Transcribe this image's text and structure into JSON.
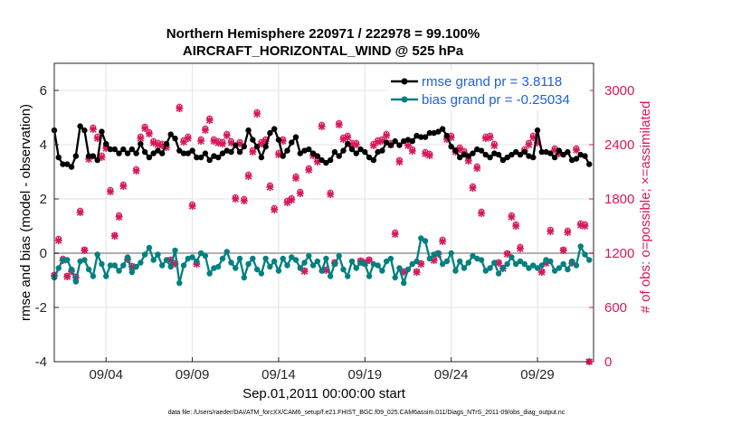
{
  "chart_data": {
    "type": "line",
    "title": "Northern Hemisphere 220971 / 222978 = 99.100%",
    "subtitle": "AIRCRAFT_HORIZONTAL_WIND @ 525 hPa",
    "xlabel": "Sep.01,2011 00:00:00 start",
    "ylabel_left": "rmse and bias (model - observation)",
    "ylabel_right": "# of obs: o=possible; ×=assimilated",
    "footnote": "data file: /Users/raeder/DAI/ATM_forcXX/CAM6_setup/f.e21.FHIST_BGC.f09_025.CAM6assim.011/Diags_NTrS_2011-09/obs_diag_output.nc",
    "xlim": [
      1.0,
      32.25
    ],
    "ylim_left": [
      -4,
      7
    ],
    "ylim_right": [
      0,
      3300
    ],
    "x_ticks": [
      4,
      9,
      14,
      19,
      24,
      29
    ],
    "x_tick_labels": [
      "09/04",
      "09/09",
      "09/14",
      "09/19",
      "09/24",
      "09/29"
    ],
    "y_ticks_left": [
      -4,
      -2,
      0,
      2,
      4,
      6
    ],
    "y_ticks_right": [
      0,
      600,
      1200,
      1800,
      2400,
      3000
    ],
    "grid": true,
    "zero_line": 0,
    "legend": {
      "position": "top-right",
      "entries": [
        "rmse grand pr = 3.8118",
        "bias grand pr = -0.25034"
      ]
    },
    "colors": {
      "rmse": "#000000",
      "bias": "#008080",
      "obs": "#d6185c",
      "legend_text": "#1f5fe0",
      "zero_line": "#b0b0b0"
    },
    "x": [
      1.0,
      1.25,
      1.5,
      1.75,
      2.0,
      2.25,
      2.5,
      2.75,
      3.0,
      3.25,
      3.5,
      3.75,
      4.0,
      4.25,
      4.5,
      4.75,
      5.0,
      5.25,
      5.5,
      5.75,
      6.0,
      6.25,
      6.5,
      6.75,
      7.0,
      7.25,
      7.5,
      7.75,
      8.0,
      8.25,
      8.5,
      8.75,
      9.0,
      9.25,
      9.5,
      9.75,
      10.0,
      10.25,
      10.5,
      10.75,
      11.0,
      11.25,
      11.5,
      11.75,
      12.0,
      12.25,
      12.5,
      12.75,
      13.0,
      13.25,
      13.5,
      13.75,
      14.0,
      14.25,
      14.5,
      14.75,
      15.0,
      15.25,
      15.5,
      15.75,
      16.0,
      16.25,
      16.5,
      16.75,
      17.0,
      17.25,
      17.5,
      17.75,
      18.0,
      18.25,
      18.5,
      18.75,
      19.0,
      19.25,
      19.5,
      19.75,
      20.0,
      20.25,
      20.5,
      20.75,
      21.0,
      21.25,
      21.5,
      21.75,
      22.0,
      22.25,
      22.5,
      22.75,
      23.0,
      23.25,
      23.5,
      23.75,
      24.0,
      24.25,
      24.5,
      24.75,
      25.0,
      25.25,
      25.5,
      25.75,
      26.0,
      26.25,
      26.5,
      26.75,
      27.0,
      27.25,
      27.5,
      27.75,
      28.0,
      28.25,
      28.5,
      28.75,
      29.0,
      29.25,
      29.5,
      29.75,
      30.0,
      30.25,
      30.5,
      30.75,
      31.0,
      31.25,
      31.5,
      31.75,
      32.0
    ],
    "series": [
      {
        "name": "rmse",
        "axis": "left",
        "values": [
          4.53,
          3.53,
          3.28,
          3.28,
          3.18,
          3.58,
          4.68,
          4.53,
          3.58,
          3.58,
          3.43,
          4.48,
          4.03,
          3.83,
          3.83,
          3.68,
          3.83,
          3.68,
          3.83,
          3.68,
          4.03,
          3.73,
          3.53,
          3.68,
          3.78,
          3.68,
          4.03,
          4.38,
          4.23,
          3.78,
          3.68,
          3.68,
          3.78,
          3.53,
          3.53,
          3.68,
          3.43,
          3.58,
          3.53,
          3.68,
          3.78,
          3.73,
          3.98,
          3.73,
          3.93,
          4.53,
          4.18,
          3.93,
          3.53,
          3.93,
          4.43,
          4.58,
          4.18,
          3.58,
          3.78,
          4.08,
          4.28,
          3.68,
          3.78,
          3.83,
          3.68,
          3.58,
          3.43,
          3.33,
          3.43,
          3.73,
          3.58,
          3.78,
          4.03,
          3.83,
          3.68,
          3.83,
          3.73,
          3.53,
          3.43,
          3.73,
          3.78,
          4.08,
          3.98,
          4.13,
          3.98,
          4.13,
          4.18,
          4.13,
          4.33,
          4.28,
          4.28,
          4.43,
          4.43,
          4.48,
          4.58,
          4.33,
          3.93,
          3.78,
          3.53,
          3.63,
          3.58,
          3.68,
          3.83,
          3.78,
          3.63,
          3.53,
          3.68,
          3.63,
          3.43,
          3.53,
          3.63,
          3.73,
          3.63,
          3.73,
          3.58,
          3.53,
          4.53,
          3.73,
          3.73,
          3.68,
          3.53,
          3.78,
          3.63,
          3.73,
          3.43,
          3.48,
          3.63,
          3.58,
          3.28
        ]
      },
      {
        "name": "bias",
        "axis": "left",
        "values": [
          -0.9,
          -0.55,
          -0.25,
          -0.25,
          -0.6,
          -1.05,
          -0.3,
          -0.25,
          -0.6,
          -0.85,
          -0.05,
          -0.4,
          -0.85,
          -0.45,
          -0.45,
          -0.65,
          -0.45,
          -0.15,
          -0.7,
          -0.5,
          -0.35,
          -0.05,
          0.2,
          -0.25,
          -0.05,
          -0.45,
          -0.25,
          -0.5,
          0.1,
          -1.1,
          -0.45,
          -0.2,
          -0.15,
          -0.3,
          0.0,
          -0.1,
          -0.75,
          -0.55,
          -0.5,
          -0.2,
          0.05,
          -0.35,
          -0.55,
          -0.2,
          -0.9,
          -0.4,
          -0.2,
          -0.6,
          -0.75,
          -0.2,
          -0.5,
          -0.3,
          -0.65,
          -0.2,
          -0.45,
          -0.15,
          -0.25,
          -0.55,
          -0.35,
          -0.1,
          -0.45,
          -0.3,
          -0.65,
          -0.2,
          -0.85,
          -0.4,
          -0.1,
          -0.6,
          -0.85,
          -0.3,
          -0.55,
          -0.35,
          -0.4,
          -0.85,
          -0.4,
          -0.45,
          -0.65,
          -0.3,
          -0.2,
          -0.9,
          -0.55,
          -1.1,
          -0.6,
          -0.4,
          -0.3,
          0.55,
          0.45,
          -0.2,
          -0.05,
          0.0,
          -0.4,
          -0.3,
          0.0,
          -0.65,
          -0.3,
          -0.55,
          -0.35,
          -0.1,
          -0.2,
          -0.25,
          -0.65,
          -0.55,
          -0.35,
          -0.75,
          -0.55,
          -0.4,
          -0.15,
          -0.4,
          -0.3,
          -0.4,
          -0.55,
          -0.45,
          -0.55,
          -0.45,
          -0.25,
          -0.3,
          -0.65,
          -0.55,
          -0.4,
          -0.6,
          -0.3,
          -0.45,
          0.25,
          -0.05,
          -0.25
        ]
      },
      {
        "name": "obs_possible",
        "axis": "right",
        "marker": "circle",
        "values": [
          960,
          1360,
          1140,
          950,
          1010,
          940,
          1670,
          1240,
          2260,
          2590,
          2490,
          2280,
          2380,
          1900,
          1400,
          1620,
          1960,
          1140,
          1060,
          2130,
          2490,
          2600,
          2540,
          2440,
          2420,
          2410,
          2390,
          1130,
          1090,
          2820,
          2450,
          2490,
          1740,
          1090,
          2460,
          2580,
          2690,
          2460,
          2440,
          2430,
          2520,
          2440,
          1820,
          2430,
          1800,
          2070,
          2340,
          2760,
          2430,
          2460,
          1950,
          1700,
          2310,
          2460,
          1780,
          1810,
          2050,
          1880,
          1010,
          2140,
          2300,
          2230,
          2620,
          1020,
          1870,
          1100,
          2640,
          2480,
          2500,
          2420,
          2420,
          1120,
          1100,
          1130,
          2410,
          2450,
          2460,
          2520,
          2420,
          1430,
          2230,
          1000,
          2410,
          2350,
          1000,
          1090,
          2320,
          2300,
          1130,
          1200,
          1350,
          2480,
          2500,
          2340,
          2370,
          2330,
          2240,
          1940,
          2160,
          1660,
          2490,
          2500,
          2410,
          1100,
          1040,
          1200,
          1620,
          1520,
          1270,
          2350,
          2420,
          2500,
          2440,
          1000,
          1100,
          1460,
          2360,
          2320,
          1240,
          1450,
          1100,
          2360,
          1530,
          1520,
          0
        ]
      },
      {
        "name": "obs_assimilated",
        "axis": "right",
        "marker": "x",
        "values": [
          950,
          1340,
          1120,
          940,
          1000,
          930,
          1650,
          1230,
          2240,
          2570,
          2470,
          2260,
          2360,
          1880,
          1390,
          1600,
          1940,
          1130,
          1050,
          2110,
          2470,
          2580,
          2520,
          2420,
          2400,
          2390,
          2370,
          1120,
          1080,
          2800,
          2430,
          2470,
          1720,
          1080,
          2440,
          2560,
          2670,
          2440,
          2420,
          2410,
          2500,
          2420,
          1800,
          2410,
          1780,
          2050,
          2320,
          2740,
          2410,
          2440,
          1930,
          1680,
          2290,
          2440,
          1760,
          1790,
          2030,
          1860,
          1000,
          2120,
          2280,
          2210,
          2600,
          1010,
          1850,
          1090,
          2620,
          2460,
          2480,
          2400,
          2400,
          1110,
          1090,
          1120,
          2390,
          2430,
          2440,
          2500,
          2400,
          1410,
          2210,
          990,
          2390,
          2330,
          990,
          1080,
          2300,
          2280,
          1120,
          1190,
          1330,
          2460,
          2480,
          2320,
          2350,
          2310,
          2220,
          1920,
          2140,
          1640,
          2470,
          2480,
          2390,
          1090,
          1030,
          1190,
          1600,
          1500,
          1250,
          2330,
          2400,
          2480,
          2420,
          990,
          1090,
          1440,
          2340,
          2300,
          1230,
          1430,
          1090,
          2340,
          1510,
          1500,
          0
        ]
      }
    ]
  }
}
